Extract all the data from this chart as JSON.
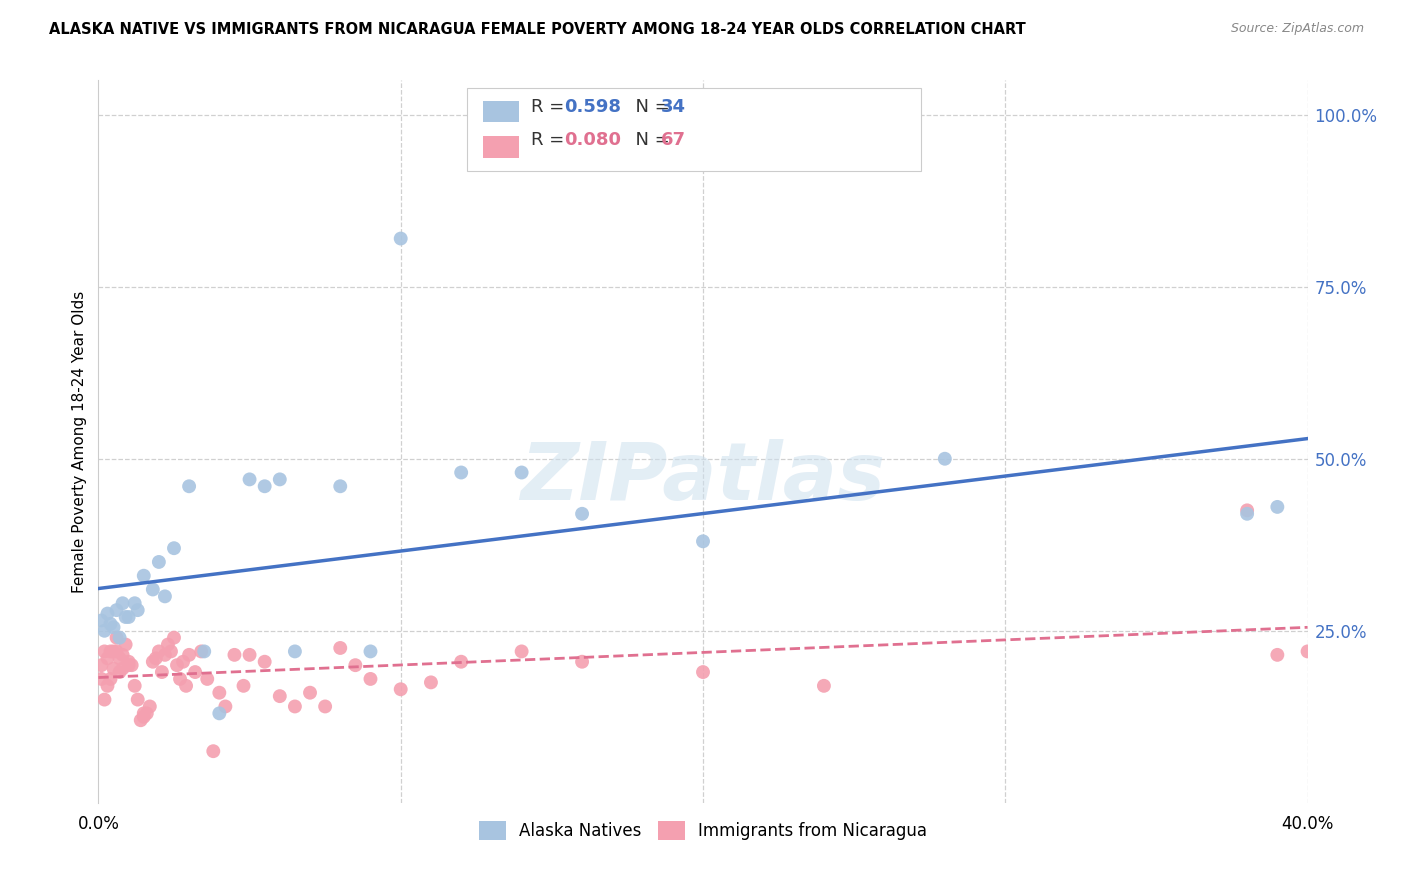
{
  "title": "ALASKA NATIVE VS IMMIGRANTS FROM NICARAGUA FEMALE POVERTY AMONG 18-24 YEAR OLDS CORRELATION CHART",
  "source": "Source: ZipAtlas.com",
  "ylabel": "Female Poverty Among 18-24 Year Olds",
  "right_yticks": [
    "100.0%",
    "75.0%",
    "50.0%",
    "25.0%"
  ],
  "right_ytick_vals": [
    1.0,
    0.75,
    0.5,
    0.25
  ],
  "blue_R": 0.598,
  "blue_N": 34,
  "pink_R": 0.08,
  "pink_N": 67,
  "blue_color": "#a8c4e0",
  "blue_line_color": "#4472c4",
  "pink_color": "#f4a0b0",
  "pink_line_color": "#e07090",
  "legend_blue_label": "Alaska Natives",
  "legend_pink_label": "Immigrants from Nicaragua",
  "watermark": "ZIPatlas",
  "background_color": "#ffffff",
  "blue_x": [
    0.001,
    0.002,
    0.003,
    0.004,
    0.005,
    0.006,
    0.007,
    0.008,
    0.009,
    0.01,
    0.012,
    0.013,
    0.015,
    0.018,
    0.02,
    0.022,
    0.025,
    0.03,
    0.035,
    0.04,
    0.05,
    0.055,
    0.06,
    0.065,
    0.08,
    0.09,
    0.1,
    0.12,
    0.14,
    0.16,
    0.2,
    0.28,
    0.38,
    0.39
  ],
  "blue_y": [
    0.265,
    0.25,
    0.275,
    0.26,
    0.255,
    0.28,
    0.24,
    0.29,
    0.27,
    0.27,
    0.29,
    0.28,
    0.33,
    0.31,
    0.35,
    0.3,
    0.37,
    0.46,
    0.22,
    0.13,
    0.47,
    0.46,
    0.47,
    0.22,
    0.46,
    0.22,
    0.82,
    0.48,
    0.48,
    0.42,
    0.38,
    0.5,
    0.42,
    0.43
  ],
  "pink_x": [
    0.001,
    0.001,
    0.002,
    0.002,
    0.003,
    0.003,
    0.004,
    0.004,
    0.005,
    0.005,
    0.006,
    0.006,
    0.007,
    0.007,
    0.008,
    0.008,
    0.009,
    0.01,
    0.01,
    0.011,
    0.012,
    0.013,
    0.014,
    0.015,
    0.015,
    0.016,
    0.017,
    0.018,
    0.019,
    0.02,
    0.021,
    0.022,
    0.023,
    0.024,
    0.025,
    0.026,
    0.027,
    0.028,
    0.029,
    0.03,
    0.032,
    0.034,
    0.036,
    0.038,
    0.04,
    0.042,
    0.045,
    0.048,
    0.05,
    0.055,
    0.06,
    0.065,
    0.07,
    0.075,
    0.08,
    0.085,
    0.09,
    0.1,
    0.11,
    0.12,
    0.14,
    0.16,
    0.2,
    0.24,
    0.38,
    0.39,
    0.4
  ],
  "pink_y": [
    0.2,
    0.18,
    0.15,
    0.22,
    0.17,
    0.21,
    0.18,
    0.22,
    0.22,
    0.195,
    0.24,
    0.22,
    0.19,
    0.21,
    0.215,
    0.195,
    0.23,
    0.2,
    0.205,
    0.2,
    0.17,
    0.15,
    0.12,
    0.125,
    0.13,
    0.13,
    0.14,
    0.205,
    0.21,
    0.22,
    0.19,
    0.215,
    0.23,
    0.22,
    0.24,
    0.2,
    0.18,
    0.205,
    0.17,
    0.215,
    0.19,
    0.22,
    0.18,
    0.075,
    0.16,
    0.14,
    0.215,
    0.17,
    0.215,
    0.205,
    0.155,
    0.14,
    0.16,
    0.14,
    0.225,
    0.2,
    0.18,
    0.165,
    0.175,
    0.205,
    0.22,
    0.205,
    0.19,
    0.17,
    0.425,
    0.215,
    0.22
  ]
}
